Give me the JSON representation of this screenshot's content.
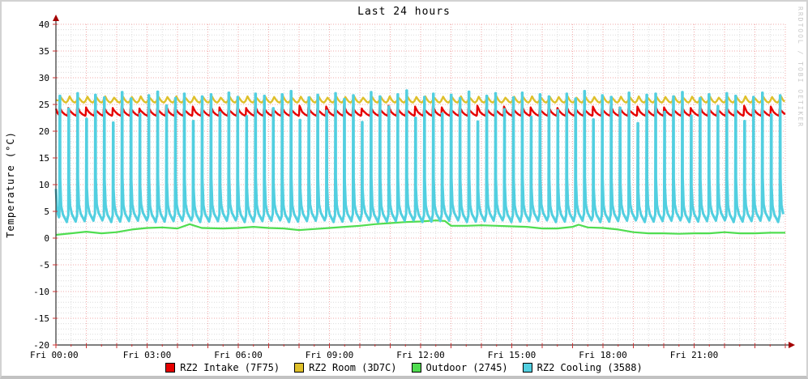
{
  "watermark": "RRDTOOL / TOBI OETIKER",
  "chart_data": {
    "type": "line",
    "title": "Last 24 hours",
    "ylabel": "Temperature (°C)",
    "xlabel": "",
    "ylim": [
      -20,
      40
    ],
    "xlim_hours": [
      0,
      24
    ],
    "y_major_ticks": [
      40,
      35,
      30,
      25,
      20,
      15,
      10,
      5,
      0,
      -5,
      -10,
      -15,
      -20
    ],
    "grid": {
      "y_minor_step": 1,
      "x_major_step_h": 1,
      "x_minor_step_h": 0.5,
      "major_color": "#f2a9a9",
      "minor_color": "#dcdcdc",
      "tick_color": "#cc3333",
      "axis_color": "#333333",
      "arrow_color": "#a40000",
      "grid_on": true
    },
    "x_ticks": [
      {
        "h": 0,
        "label": "Fri 00:00"
      },
      {
        "h": 3,
        "label": "Fri 03:00"
      },
      {
        "h": 6,
        "label": "Fri 06:00"
      },
      {
        "h": 9,
        "label": "Fri 09:00"
      },
      {
        "h": 12,
        "label": "Fri 12:00"
      },
      {
        "h": 15,
        "label": "Fri 15:00"
      },
      {
        "h": 18,
        "label": "Fri 18:00"
      },
      {
        "h": 21,
        "label": "Fri 21:00"
      }
    ],
    "legend_position": "bottom-center",
    "series": [
      {
        "name": "RZ2 Intake (7F75)",
        "color": "#e60000",
        "width": 2.4,
        "type": "sawtooth",
        "period_h": 0.2926,
        "phase_h": 0.1,
        "min": 22.85,
        "max": 24.45,
        "peak_jitter": [
          0.15,
          -0.1,
          0.3,
          0,
          -0.2
        ],
        "lead_in": [
          [
            0,
            24.2
          ],
          [
            0.05,
            23.4
          ]
        ]
      },
      {
        "name": "RZ2 Room (3D7C)",
        "color": "#dfc02a",
        "width": 2.4,
        "type": "ripple",
        "period_h": 0.2926,
        "phase_h": 0.1,
        "min": 25.35,
        "max": 26.4,
        "peak_jitter": [
          0,
          0.12,
          -0.12,
          0.06
        ],
        "lead_in": [
          [
            0,
            25.8
          ]
        ]
      },
      {
        "name": "Outdoor (2745)",
        "color": "#50dd50",
        "width": 2.2,
        "type": "points",
        "points": [
          [
            0,
            0.6
          ],
          [
            0.5,
            0.9
          ],
          [
            1,
            1.2
          ],
          [
            1.5,
            0.9
          ],
          [
            2,
            1.1
          ],
          [
            2.5,
            1.6
          ],
          [
            3,
            1.9
          ],
          [
            3.5,
            2.0
          ],
          [
            4,
            1.8
          ],
          [
            4.4,
            2.6
          ],
          [
            4.8,
            1.9
          ],
          [
            5.5,
            1.8
          ],
          [
            6,
            1.9
          ],
          [
            6.5,
            2.1
          ],
          [
            7,
            1.9
          ],
          [
            7.5,
            1.8
          ],
          [
            8,
            1.5
          ],
          [
            8.5,
            1.7
          ],
          [
            9,
            1.9
          ],
          [
            9.5,
            2.1
          ],
          [
            10,
            2.3
          ],
          [
            10.5,
            2.6
          ],
          [
            11,
            2.8
          ],
          [
            11.5,
            3.0
          ],
          [
            12,
            3.1
          ],
          [
            12.5,
            3.3
          ],
          [
            12.8,
            3.2
          ],
          [
            13.0,
            2.3
          ],
          [
            13.5,
            2.3
          ],
          [
            14,
            2.4
          ],
          [
            14.5,
            2.3
          ],
          [
            15,
            2.2
          ],
          [
            15.5,
            2.1
          ],
          [
            16,
            1.8
          ],
          [
            16.5,
            1.8
          ],
          [
            17,
            2.1
          ],
          [
            17.2,
            2.5
          ],
          [
            17.5,
            2.0
          ],
          [
            18,
            1.9
          ],
          [
            18.5,
            1.6
          ],
          [
            19,
            1.1
          ],
          [
            19.5,
            0.9
          ],
          [
            20,
            0.9
          ],
          [
            20.5,
            0.8
          ],
          [
            21,
            0.9
          ],
          [
            21.5,
            0.9
          ],
          [
            22,
            1.1
          ],
          [
            22.5,
            0.9
          ],
          [
            23,
            0.9
          ],
          [
            23.5,
            1.0
          ],
          [
            24,
            1.0
          ]
        ]
      },
      {
        "name": "RZ2 Cooling (3588)",
        "color": "#52cfe0",
        "width": 3,
        "type": "spikes",
        "period_h": 0.2926,
        "phase_h": 0.1,
        "baseline": 3.8,
        "dip": 3.0,
        "lead_in": [
          [
            0,
            9.2
          ],
          [
            0.03,
            6.0
          ],
          [
            0.07,
            4.4
          ]
        ],
        "peaks": [
          26.6,
          24.2,
          27.1,
          22.3,
          26.8,
          26.3,
          21.6,
          27.3,
          26.1,
          23.2,
          26.7,
          27.4,
          24.8,
          26.2,
          27.0,
          21.9,
          26.5,
          26.9,
          23.5,
          27.2,
          26.4,
          22.8,
          27.0,
          26.6,
          24.3,
          26.9,
          27.5,
          22.1,
          26.3,
          26.8,
          23.8,
          27.1,
          26.0,
          26.7,
          21.7,
          27.3,
          26.5,
          24.6,
          26.9,
          27.6,
          22.5,
          26.4,
          27.0,
          23.3,
          26.8,
          26.2,
          27.4,
          21.8,
          26.6,
          27.1,
          24.1,
          26.3,
          27.2,
          22.7,
          26.9,
          26.5,
          23.9,
          27.0,
          26.1,
          27.5,
          22.2,
          26.7,
          26.4,
          24.4,
          27.2,
          21.5,
          26.8,
          27.0,
          23.6,
          26.5,
          27.3,
          22.9,
          26.2,
          26.9,
          24.7,
          27.1,
          26.6,
          21.9,
          26.4,
          27.2,
          23.1,
          26.7
        ]
      }
    ]
  }
}
